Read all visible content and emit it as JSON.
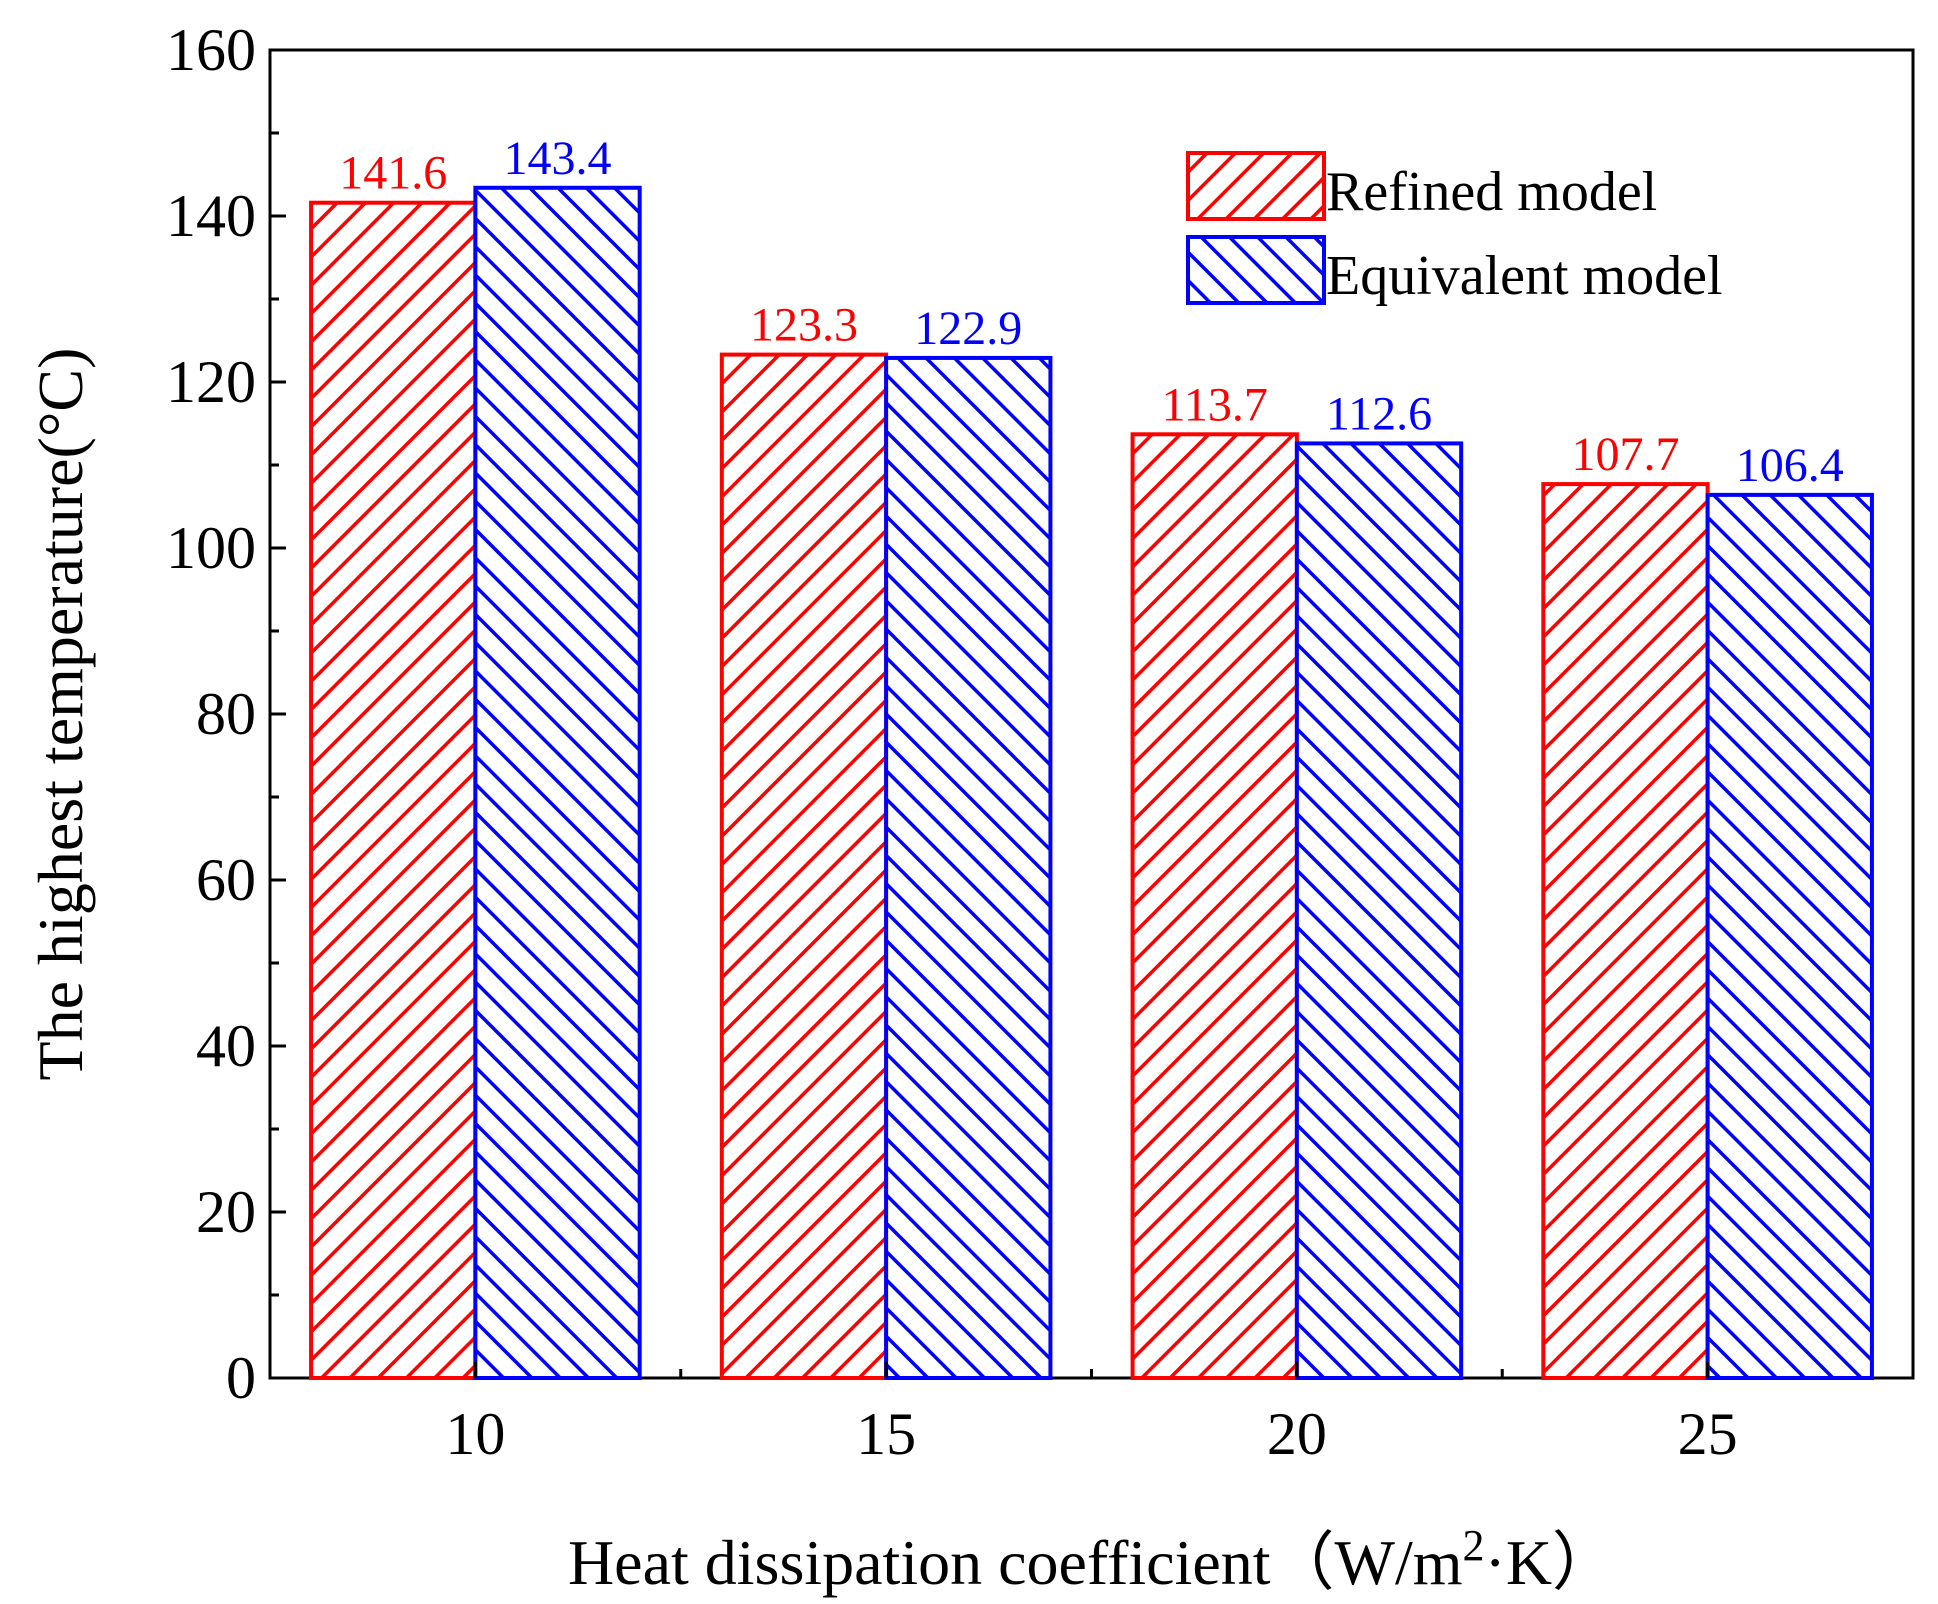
{
  "chart_data": {
    "type": "bar",
    "title": "",
    "xlabel": "Heat dissipation coefficient（W/m²·K）",
    "xlabel_parts": {
      "main": "Heat dissipation coefficient（W/m",
      "superscript": "2",
      "tail": "·K）"
    },
    "ylabel": "The highest temperature(°C)",
    "categories": [
      "10",
      "15",
      "20",
      "25"
    ],
    "series": [
      {
        "name": "Refined model",
        "color": "#ff0000",
        "pattern": "forward-diagonal-hatch",
        "values": [
          141.6,
          123.3,
          113.7,
          107.7
        ],
        "labels": [
          "141.6",
          "123.3",
          "113.7",
          "107.7"
        ]
      },
      {
        "name": "Equivalent model",
        "color": "#0000ff",
        "pattern": "backward-diagonal-hatch",
        "values": [
          143.4,
          122.9,
          112.6,
          106.4
        ],
        "labels": [
          "143.4",
          "122.9",
          "112.6",
          "106.4"
        ]
      }
    ],
    "ylim": [
      0,
      160
    ],
    "yticks": [
      0,
      20,
      40,
      60,
      80,
      100,
      120,
      140,
      160
    ],
    "yticks_minor_step": 10,
    "grid": false,
    "legend_position": "top-right"
  }
}
